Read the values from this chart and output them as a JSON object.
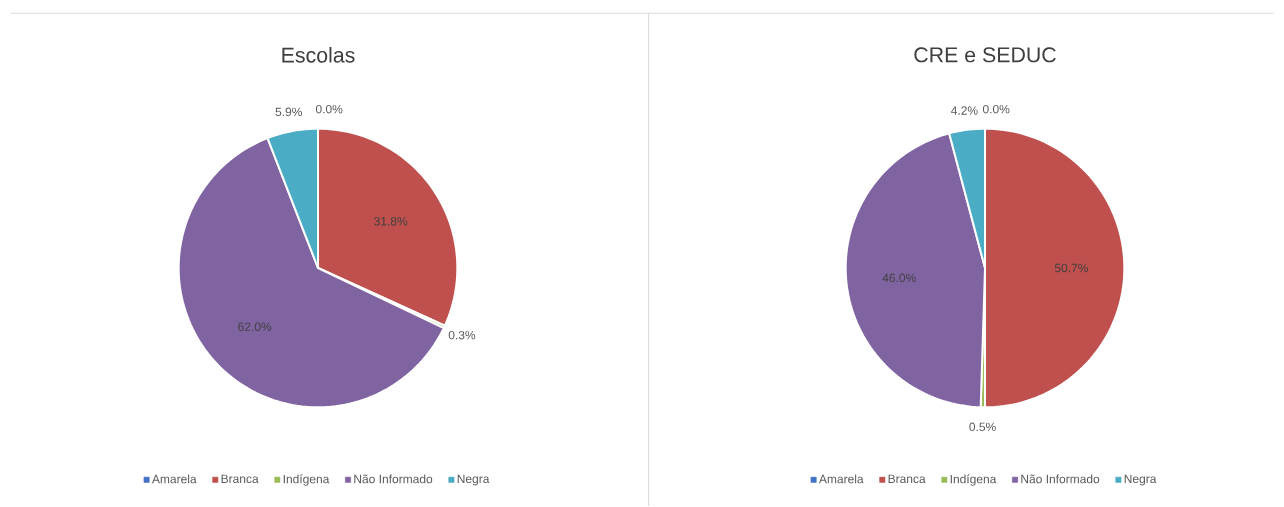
{
  "chart_data": [
    {
      "type": "pie",
      "title": "Escolas",
      "categories": [
        "Amarela",
        "Branca",
        "Indígena",
        "Não Informado",
        "Negra"
      ],
      "values": [
        0.0,
        31.8,
        0.3,
        62.0,
        5.9
      ],
      "value_labels": [
        "0.0%",
        "31.8%",
        "0.3%",
        "62.0%",
        "5.9%"
      ],
      "colors": [
        "#4472c4",
        "#c0504d",
        "#9bbb59",
        "#8064a2",
        "#4bacc6"
      ],
      "legend": "bottom"
    },
    {
      "type": "pie",
      "title": "CRE e SEDUC",
      "categories": [
        "Amarela",
        "Branca",
        "Indígena",
        "Não Informado",
        "Negra"
      ],
      "values": [
        0.0,
        50.7,
        0.5,
        46.0,
        4.2
      ],
      "value_labels": [
        "0.0%",
        "50.7%",
        "0.5%",
        "46.0%",
        "4.2%"
      ],
      "colors": [
        "#4472c4",
        "#c0504d",
        "#9bbb59",
        "#8064a2",
        "#4bacc6"
      ],
      "legend": "bottom"
    }
  ]
}
